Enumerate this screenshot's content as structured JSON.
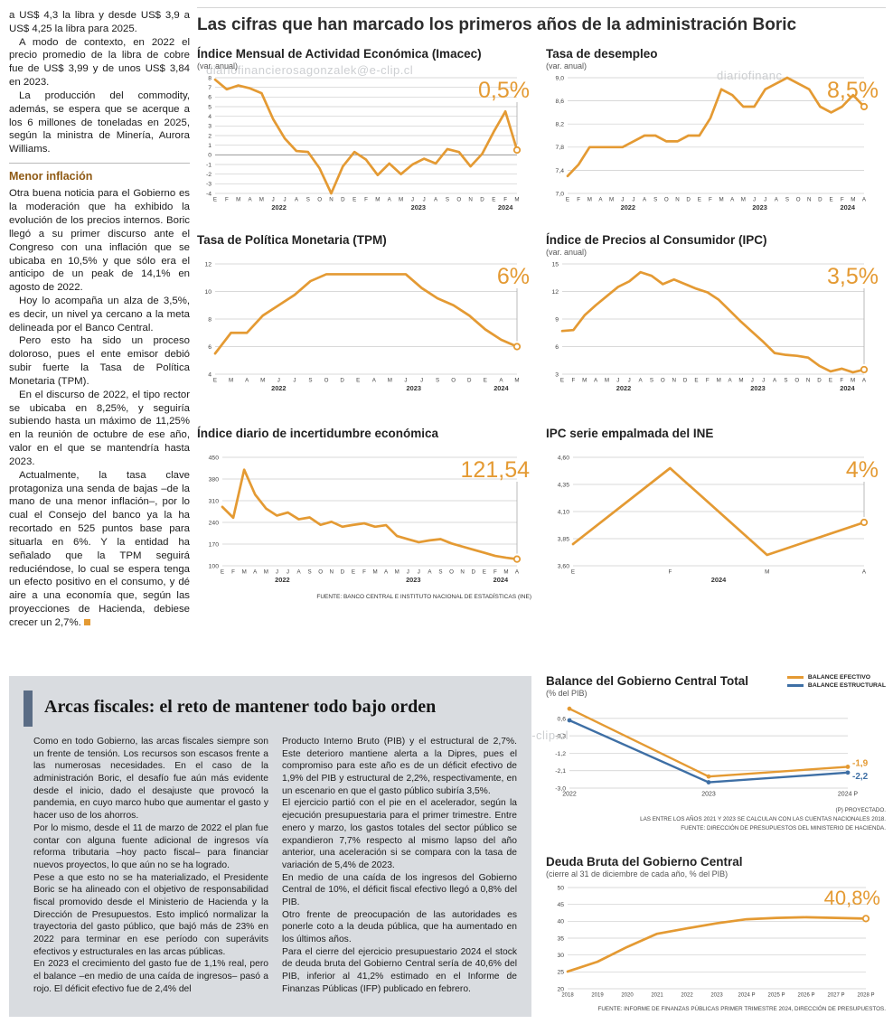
{
  "watermarks": {
    "top": "diariofinancierosagonzalek@e-clip.cl",
    "top_right": "diariofinanc",
    "bottom": "ero#sagonzalez@e-clip.cl"
  },
  "left_column": {
    "p1": "a US$ 4,3 la libra y desde US$ 3,9 a US$ 4,25 la libra para 2025.",
    "p2": "A modo de contexto, en 2022 el precio promedio de la libra de cobre fue de US$ 3,99 y de unos US$ 3,84 en 2023.",
    "p3": "La producción del commodity, además, se espera que se acerque a los 6 millones de toneladas en 2025, según la ministra de Minería, Aurora Williams.",
    "subhead": "Menor inflación",
    "p4": "Otra buena noticia para el Gobierno es la moderación que ha exhibido la evolución de los precios internos. Boric llegó a su primer discurso ante el Congreso con una inflación que se ubicaba en 10,5% y que sólo era el anticipo de un peak de 14,1% en agosto de 2022.",
    "p5": "Hoy lo acompaña un alza de 3,5%, es decir, un nivel ya cercano a la meta delineada por el Banco Central.",
    "p6": "Pero esto ha sido un proceso doloroso, pues el ente emisor debió subir fuerte la Tasa de Política Monetaria (TPM).",
    "p7": "En el discurso de 2022, el tipo rector se ubicaba en 8,25%, y seguiría subiendo hasta un máximo de 11,25% en la reunión de octubre de ese año, valor en el que se mantendría hasta 2023.",
    "p8": "Actualmente, la tasa clave protagoniza una senda de bajas –de la mano de una menor inflación–, por lo cual el Consejo del banco ya la ha recortado en 525 puntos base para situarla en 6%. Y la entidad ha señalado que la TPM seguirá reduciéndose, lo cual se espera tenga un efecto positivo en el consumo, y dé aire a una economía que, según las proyecciones de Hacienda, debiese crecer un 2,7%."
  },
  "main": {
    "title": "Las cifras que han marcado los primeros años de la administración Boric",
    "source_note": "FUENTE: BANCO CENTRAL E INSTITUTO NACIONAL DE ESTADÍSTICAS (INE)"
  },
  "arcas": {
    "title": "Arcas fiscales: el reto de mantener todo bajo orden",
    "col1_p1": "Como en todo Gobierno, las arcas fiscales siempre son un frente de tensión. Los recursos son escasos frente a las numerosas necesidades. En el caso de la administración Boric, el desafío fue aún más evidente desde el inicio, dado el desajuste que provocó la pandemia, en cuyo marco hubo que aumentar el gasto y hacer uso de los ahorros.",
    "col1_p2": "Por lo mismo, desde el 11 de marzo de 2022 el plan fue contar con alguna fuente adicional de ingresos vía reforma tributaria –hoy pacto fiscal– para financiar nuevos proyectos, lo que aún no se ha logrado.",
    "col1_p3": "Pese a que esto no se ha materializado, el Presidente Boric se ha alineado con el objetivo de responsabilidad fiscal promovido desde el Ministerio de Hacienda y la Dirección de Presupuestos. Esto implicó normalizar la trayectoria del gasto público, que bajó más de 23% en 2022 para terminar en ese período con superávits efectivos y estructurales en las arcas públicas.",
    "col1_p4": "En 2023 el crecimiento del gasto fue de 1,1% real, pero el balance –en medio de una caída de ingresos– pasó a rojo. El déficit efectivo fue de 2,4% del",
    "col2_p1": "Producto Interno Bruto (PIB) y el estructural de 2,7%. Este deterioro mantiene alerta a la Dipres, pues el compromiso para este año es de un déficit efectivo de 1,9% del PIB y estructural de 2,2%, respectivamente, en un escenario en que el gasto público subiría 3,5%.",
    "col2_p2": "El ejercicio partió con el pie en el acelerador, según la ejecución presupuestaria para el primer trimestre. Entre enero y marzo, los gastos totales del sector público se expandieron 7,7% respecto al mismo lapso del año anterior, una aceleración si se compara con la tasa de variación de 5,4% de 2023.",
    "col2_p3": "En medio de una caída de los ingresos del Gobierno Central de 10%, el déficit fiscal efectivo llegó a 0,8% del PIB.",
    "col2_p4": "Otro frente de preocupación de las autoridades es ponerle coto a la deuda pública, que ha aumentado en los últimos años.",
    "col2_p5": "Para el cierre del ejercicio presupuestario 2024 el stock de deuda bruta del Gobierno Central sería de 40,6% del PIB, inferior al 41,2% estimado en el Informe de Finanzas Públicas (IFP) publicado en febrero."
  },
  "chart_data": [
    {
      "id": "imacec",
      "type": "line",
      "title": "Índice Mensual de Actividad Económica (Imacec)",
      "subtitle": "(var. anual)",
      "big_label": "0,5%",
      "color": "#E49A33",
      "ylim": [
        -4,
        8
      ],
      "yticks": [
        8,
        7,
        6,
        5,
        4,
        3,
        2,
        1,
        0,
        -1,
        -2,
        -3,
        -4
      ],
      "ytick_labels": [
        "8",
        "7",
        "6",
        "5",
        "4",
        "3",
        "2",
        "1",
        "0",
        "-1",
        "-2",
        "-3",
        "-4"
      ],
      "xtick_labels": [
        "E",
        "F",
        "M",
        "A",
        "M",
        "J",
        "J",
        "A",
        "S",
        "O",
        "N",
        "D",
        "E",
        "F",
        "M",
        "A",
        "M",
        "J",
        "J",
        "A",
        "S",
        "O",
        "N",
        "D",
        "E",
        "F",
        "M"
      ],
      "year_labels": [
        {
          "text": "2022",
          "at": 5.5
        },
        {
          "text": "2023",
          "at": 17.5
        },
        {
          "text": "2024",
          "at": 25
        }
      ],
      "values": [
        7.8,
        6.8,
        7.2,
        6.9,
        6.4,
        3.7,
        1.7,
        0.4,
        0.3,
        -1.4,
        -4.0,
        -1.2,
        0.3,
        -0.5,
        -2.1,
        -0.9,
        -2.0,
        -1.0,
        -0.4,
        -0.9,
        0.6,
        0.3,
        -1.2,
        0.1,
        2.4,
        4.5,
        0.5
      ]
    },
    {
      "id": "desempleo",
      "type": "line",
      "title": "Tasa de desempleo",
      "subtitle": "(var. anual)",
      "big_label": "8,5%",
      "color": "#E49A33",
      "ylim": [
        7.0,
        9.0
      ],
      "yticks": [
        9.0,
        8.6,
        8.2,
        7.8,
        7.4,
        7.0
      ],
      "ytick_labels": [
        "9,0",
        "8,6",
        "8,2",
        "7,8",
        "7,4",
        "7,0"
      ],
      "xtick_labels": [
        "E",
        "F",
        "M",
        "A",
        "M",
        "J",
        "J",
        "A",
        "S",
        "O",
        "N",
        "D",
        "E",
        "F",
        "M",
        "A",
        "M",
        "J",
        "J",
        "A",
        "S",
        "O",
        "N",
        "D",
        "E",
        "F",
        "M",
        "A"
      ],
      "year_labels": [
        {
          "text": "2022",
          "at": 5.5
        },
        {
          "text": "2023",
          "at": 17.5
        },
        {
          "text": "2024",
          "at": 25.5
        }
      ],
      "values": [
        7.3,
        7.5,
        7.8,
        7.8,
        7.8,
        7.8,
        7.9,
        8.0,
        8.0,
        7.9,
        7.9,
        8.0,
        8.0,
        8.3,
        8.8,
        8.7,
        8.5,
        8.5,
        8.8,
        8.9,
        9.0,
        8.9,
        8.8,
        8.5,
        8.4,
        8.5,
        8.7,
        8.5
      ]
    },
    {
      "id": "tpm",
      "type": "line",
      "title": "Tasa de Política Monetaria (TPM)",
      "subtitle": "",
      "big_label": "6%",
      "color": "#E49A33",
      "ylim": [
        4,
        12
      ],
      "yticks": [
        12,
        10,
        8,
        6,
        4
      ],
      "ytick_labels": [
        "12",
        "10",
        "8",
        "6",
        "4"
      ],
      "xtick_labels": [
        "E",
        "M",
        "A",
        "M",
        "J",
        "J",
        "S",
        "O",
        "D",
        "E",
        "A",
        "M",
        "J",
        "J",
        "S",
        "O",
        "D",
        "E",
        "A",
        "M"
      ],
      "year_labels": [
        {
          "text": "2022",
          "at": 4
        },
        {
          "text": "2023",
          "at": 12.5
        },
        {
          "text": "2024",
          "at": 18
        }
      ],
      "values": [
        5.5,
        7.0,
        7.0,
        8.25,
        9.0,
        9.75,
        10.75,
        11.25,
        11.25,
        11.25,
        11.25,
        11.25,
        11.25,
        10.25,
        9.5,
        9.0,
        8.25,
        7.25,
        6.5,
        6.0
      ]
    },
    {
      "id": "ipc",
      "type": "line",
      "title": "Índice de Precios al Consumidor (IPC)",
      "subtitle": "(var. anual)",
      "big_label": "3,5%",
      "color": "#E49A33",
      "ylim": [
        3,
        15
      ],
      "yticks": [
        15,
        12,
        9,
        6,
        3
      ],
      "ytick_labels": [
        "15",
        "12",
        "9",
        "6",
        "3"
      ],
      "xtick_labels": [
        "E",
        "F",
        "M",
        "A",
        "M",
        "J",
        "J",
        "A",
        "S",
        "O",
        "N",
        "D",
        "E",
        "F",
        "M",
        "A",
        "M",
        "J",
        "J",
        "A",
        "S",
        "O",
        "N",
        "D",
        "E",
        "F",
        "M",
        "A"
      ],
      "year_labels": [
        {
          "text": "2022",
          "at": 5.5
        },
        {
          "text": "2023",
          "at": 17.5
        },
        {
          "text": "2024",
          "at": 25.5
        }
      ],
      "values": [
        7.7,
        7.8,
        9.4,
        10.5,
        11.5,
        12.5,
        13.1,
        14.1,
        13.7,
        12.8,
        13.3,
        12.8,
        12.3,
        11.9,
        11.1,
        9.9,
        8.7,
        7.6,
        6.5,
        5.3,
        5.1,
        5.0,
        4.8,
        3.9,
        3.3,
        3.6,
        3.2,
        3.5
      ]
    },
    {
      "id": "incertidumbre",
      "type": "line",
      "title": "Índice diario de incertidumbre económica",
      "subtitle": "",
      "big_label": "121,54",
      "color": "#E49A33",
      "ylim": [
        100,
        450
      ],
      "yticks": [
        450,
        380,
        310,
        240,
        170,
        100
      ],
      "ytick_labels": [
        "450",
        "380",
        "310",
        "240",
        "170",
        "100"
      ],
      "xtick_labels": [
        "E",
        "F",
        "M",
        "A",
        "M",
        "J",
        "J",
        "A",
        "S",
        "O",
        "N",
        "D",
        "E",
        "F",
        "M",
        "A",
        "M",
        "J",
        "J",
        "A",
        "S",
        "O",
        "N",
        "D",
        "E",
        "F",
        "M",
        "A"
      ],
      "year_labels": [
        {
          "text": "2022",
          "at": 5.5
        },
        {
          "text": "2023",
          "at": 17.5
        },
        {
          "text": "2024",
          "at": 25.5
        }
      ],
      "values": [
        290,
        255,
        410,
        330,
        285,
        262,
        272,
        250,
        256,
        232,
        242,
        226,
        232,
        237,
        226,
        231,
        196,
        186,
        176,
        182,
        186,
        172,
        162,
        152,
        142,
        132,
        126,
        121.54
      ]
    },
    {
      "id": "ipc-empalmada",
      "type": "line",
      "title": "IPC serie empalmada del INE",
      "subtitle": "",
      "big_label": "4%",
      "color": "#E49A33",
      "ylim": [
        3.6,
        4.6
      ],
      "yticks": [
        4.6,
        4.35,
        4.1,
        3.85,
        3.6
      ],
      "ytick_labels": [
        "4,60",
        "4,35",
        "4,10",
        "3,85",
        "3,60"
      ],
      "xtick_labels": [
        "E",
        "F",
        "M",
        "A"
      ],
      "year_labels": [
        {
          "text": "2024",
          "at": 1.5
        }
      ],
      "values": [
        3.8,
        4.5,
        3.7,
        4.0
      ]
    },
    {
      "id": "balance",
      "type": "line",
      "title": "Balance del Gobierno Central Total",
      "subtitle": "(% del PIB)",
      "ylim": [
        -3.0,
        1.2
      ],
      "yticks": [
        0.6,
        -0.3,
        -1.2,
        -2.1,
        -3.0
      ],
      "ytick_labels": [
        "0,6",
        "-0,3",
        "-1,2",
        "-2,1",
        "-3,0"
      ],
      "categories": [
        "2022",
        "2023",
        "2024 P"
      ],
      "series": [
        {
          "name": "BALANCE EFECTIVO",
          "color": "#E49A33",
          "values": [
            1.1,
            -2.4,
            -1.9
          ],
          "end_label": "-1,9"
        },
        {
          "name": "BALANCE ESTRUCTURAL",
          "color": "#3E6FA5",
          "values": [
            0.5,
            -2.7,
            -2.2
          ],
          "end_label": "-2,2"
        }
      ],
      "footnotes": [
        "(P) PROYECTADO.",
        "LAS ENTRE LOS AÑOS 2021 Y 2023 SE CALCULAN CON LAS CUENTAS NACIONALES 2018.",
        "FUENTE: DIRECCIÓN DE PRESUPUESTOS DEL MINISTERIO DE HACIENDA."
      ]
    },
    {
      "id": "deuda",
      "type": "line",
      "title": "Deuda Bruta del Gobierno Central",
      "subtitle": "(cierre al 31 de diciembre de cada año, % del PIB)",
      "big_label": "40,8%",
      "ref_line": false,
      "color": "#E49A33",
      "ylim": [
        20,
        50
      ],
      "yticks": [
        50,
        45,
        40,
        35,
        30,
        25,
        20
      ],
      "ytick_labels": [
        "50",
        "45",
        "40",
        "35",
        "30",
        "25",
        "20"
      ],
      "categories": [
        "2018",
        "2019",
        "2020",
        "2021",
        "2022",
        "2023",
        "2024 P",
        "2025 P",
        "2026 P",
        "2027 P",
        "2028 P"
      ],
      "values": [
        25.1,
        28.0,
        32.4,
        36.3,
        37.9,
        39.4,
        40.6,
        41.0,
        41.2,
        41.0,
        40.8
      ],
      "source": "FUENTE: INFORME DE FINANZAS PÚBLICAS PRIMER TRIMESTRE 2024, DIRECCIÓN DE PRESUPUESTOS."
    }
  ]
}
